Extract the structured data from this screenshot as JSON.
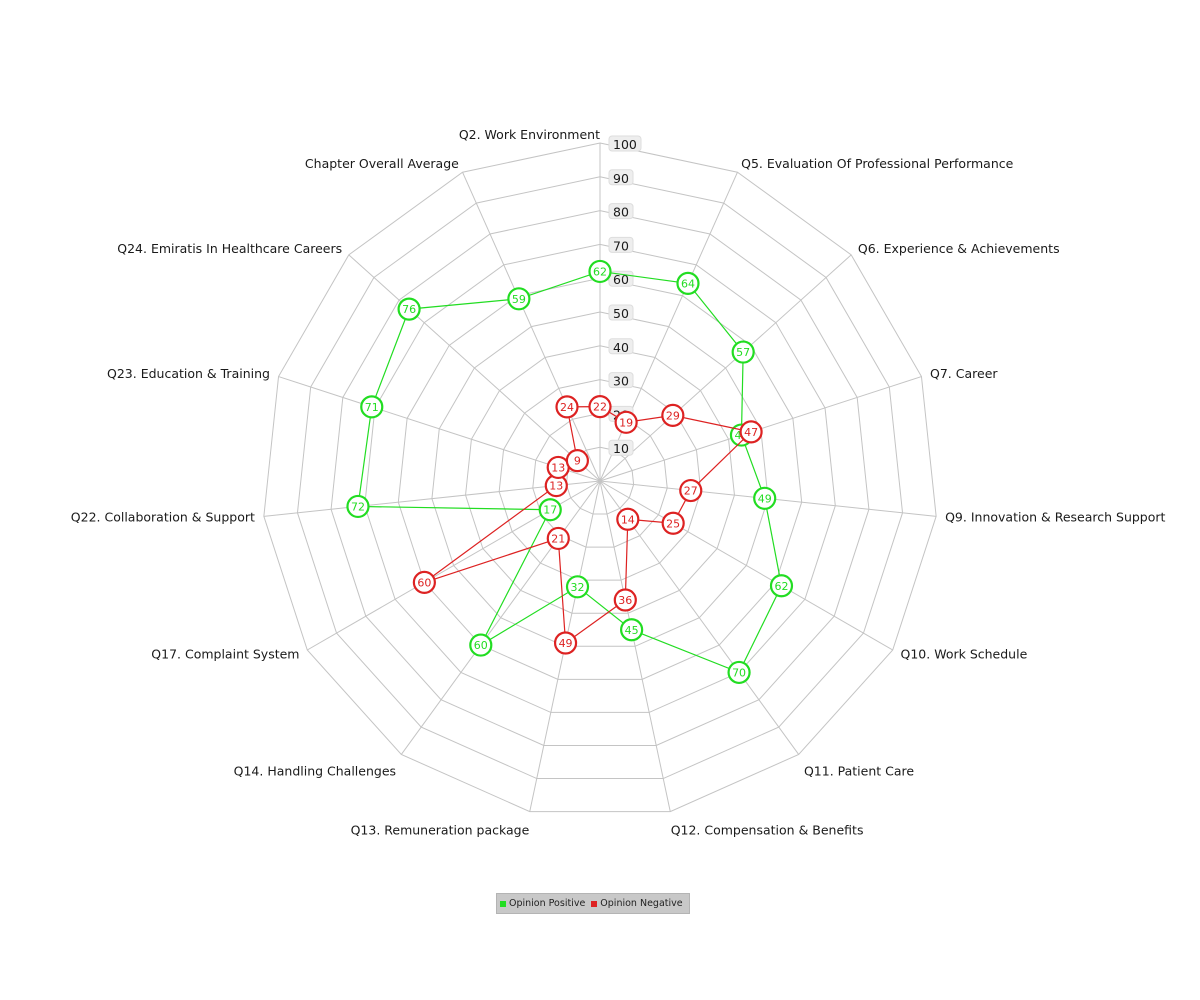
{
  "chart_data": {
    "type": "radar",
    "categories": [
      "Q2. Work Environment",
      "Q5. Evaluation Of Professional Performance",
      "Q6. Experience & Achievements",
      "Q7. Career",
      "Q9. Innovation & Research Support",
      "Q10. Work Schedule",
      "Q11. Patient Care",
      "Q12. Compensation & Benefits",
      "Q13. Remuneration package",
      "Q14. Handling Challenges",
      "Q17. Complaint System",
      "Q22. Collaboration & Support",
      "Q23. Education & Training",
      "Q24. Emiratis In Healthcare Careers",
      "Chapter Overall Average"
    ],
    "series": [
      {
        "name": "Opinion Positive",
        "color": "#22dd22",
        "values": [
          62,
          64,
          57,
          44,
          49,
          62,
          70,
          45,
          32,
          60,
          17,
          72,
          71,
          76,
          59
        ]
      },
      {
        "name": "Opinion Negative",
        "color": "#dd2222",
        "values": [
          22,
          19,
          29,
          47,
          27,
          25,
          14,
          36,
          49,
          21,
          60,
          13,
          13,
          9,
          24
        ]
      }
    ],
    "rlim": [
      0,
      100
    ],
    "ticks": [
      "10",
      "20",
      "30",
      "40",
      "50",
      "60",
      "70",
      "80",
      "90",
      "100"
    ],
    "legend_position": "bottom",
    "grid": true
  }
}
